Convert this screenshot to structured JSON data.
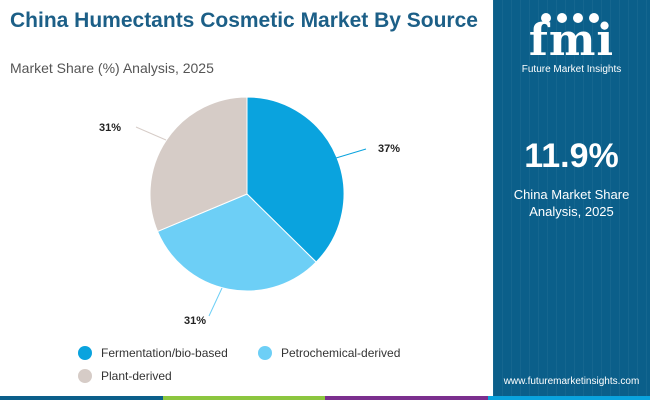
{
  "header": {
    "title": "China Humectants Cosmetic Market By Source",
    "subtitle": "Market Share (%) Analysis, 2025"
  },
  "chart_data": {
    "type": "pie",
    "categories": [
      "Fermentation/bio-based",
      "Petrochemical-derived",
      "Plant-derived"
    ],
    "values": [
      37,
      31,
      31
    ],
    "data_labels": [
      "37%",
      "31%",
      "31%"
    ],
    "colors": [
      "#0aa3de",
      "#6dcff6",
      "#d6ccc7"
    ],
    "legend_position": "bottom"
  },
  "side_panel": {
    "logo_mark": "fmi",
    "logo_text": "Future Market Insights",
    "stat_value": "11.9%",
    "stat_label_line1": "China Market Share",
    "stat_label_line2": "Analysis, 2025",
    "website": "www.futuremarketinsights.com",
    "background_color": "#0b5f8a"
  },
  "bottom_bar_colors": [
    "#0b5f8a",
    "#8cc63f",
    "#7b2f8e",
    "#0aa3de"
  ]
}
